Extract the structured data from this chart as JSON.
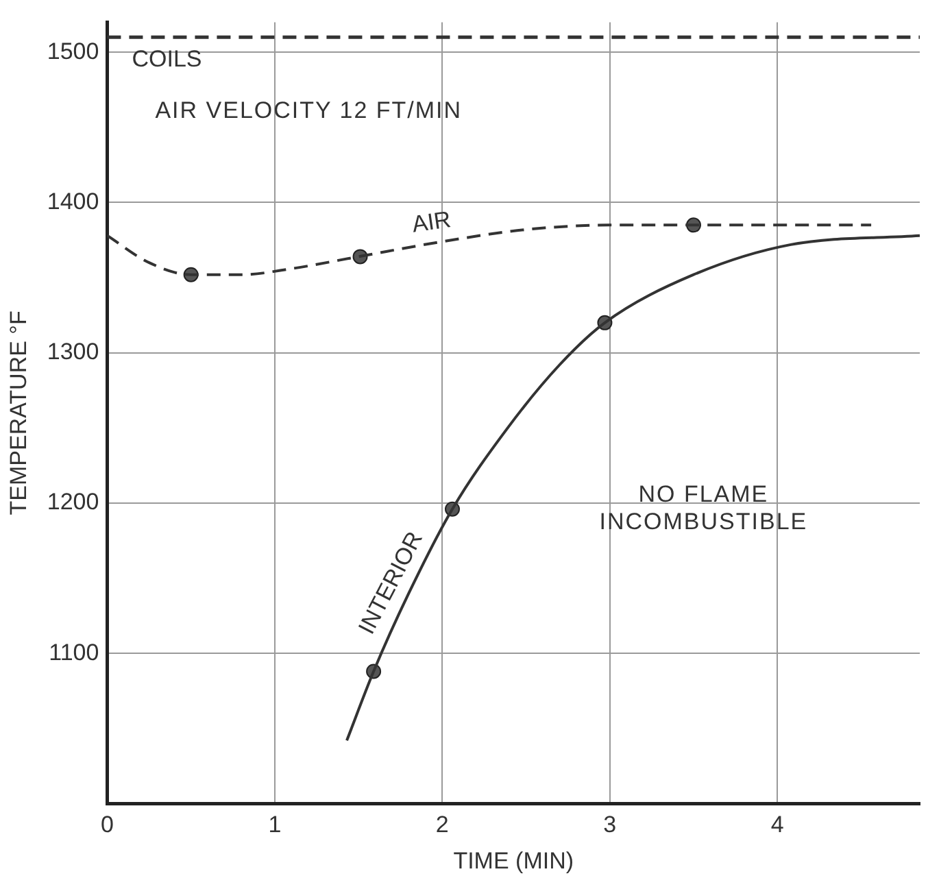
{
  "chart_data": {
    "type": "line",
    "xlabel": "TIME (MIN)",
    "ylabel": "TEMPERATURE °F",
    "xlim": [
      0,
      4.85
    ],
    "xticks": [
      0,
      1,
      2,
      3,
      4
    ],
    "ylim": [
      1000,
      1520
    ],
    "yticks": [
      1100,
      1200,
      1300,
      1400,
      1500
    ],
    "grid": true,
    "legend": false,
    "series": [
      {
        "name": "AIR",
        "line_style": "dashed",
        "color": "#333333",
        "x": [
          0,
          0.25,
          0.5,
          0.8,
          1.1,
          1.5,
          2,
          2.5,
          3,
          3.5,
          4.56
        ],
        "values": [
          1378,
          1360,
          1352,
          1352,
          1356,
          1364,
          1374,
          1382,
          1385,
          1385,
          1385
        ]
      },
      {
        "name": "INTERIOR",
        "line_style": "solid",
        "color": "#333333",
        "x": [
          1.43,
          1.59,
          1.8,
          2.06,
          2.39,
          2.7,
          2.97,
          3.5,
          4.08,
          4.85
        ],
        "values": [
          1042,
          1088,
          1140,
          1196,
          1250,
          1292,
          1320,
          1352,
          1372,
          1378
        ]
      },
      {
        "type": "scatter",
        "marker": "circle",
        "color": "#555555",
        "x": [
          0.5,
          1.51,
          3.5,
          1.59,
          2.06,
          2.97
        ],
        "values": [
          1352,
          1364,
          1385,
          1088,
          1196,
          1320
        ]
      }
    ],
    "ref_lines": [
      {
        "axis": "y",
        "value": 1510,
        "label": "COILS",
        "line_style": "dashed"
      }
    ],
    "annotations": [
      "AIR VELOCITY 12 FT/MIN",
      "NO FLAME INCOMBUSTIBLE"
    ]
  }
}
